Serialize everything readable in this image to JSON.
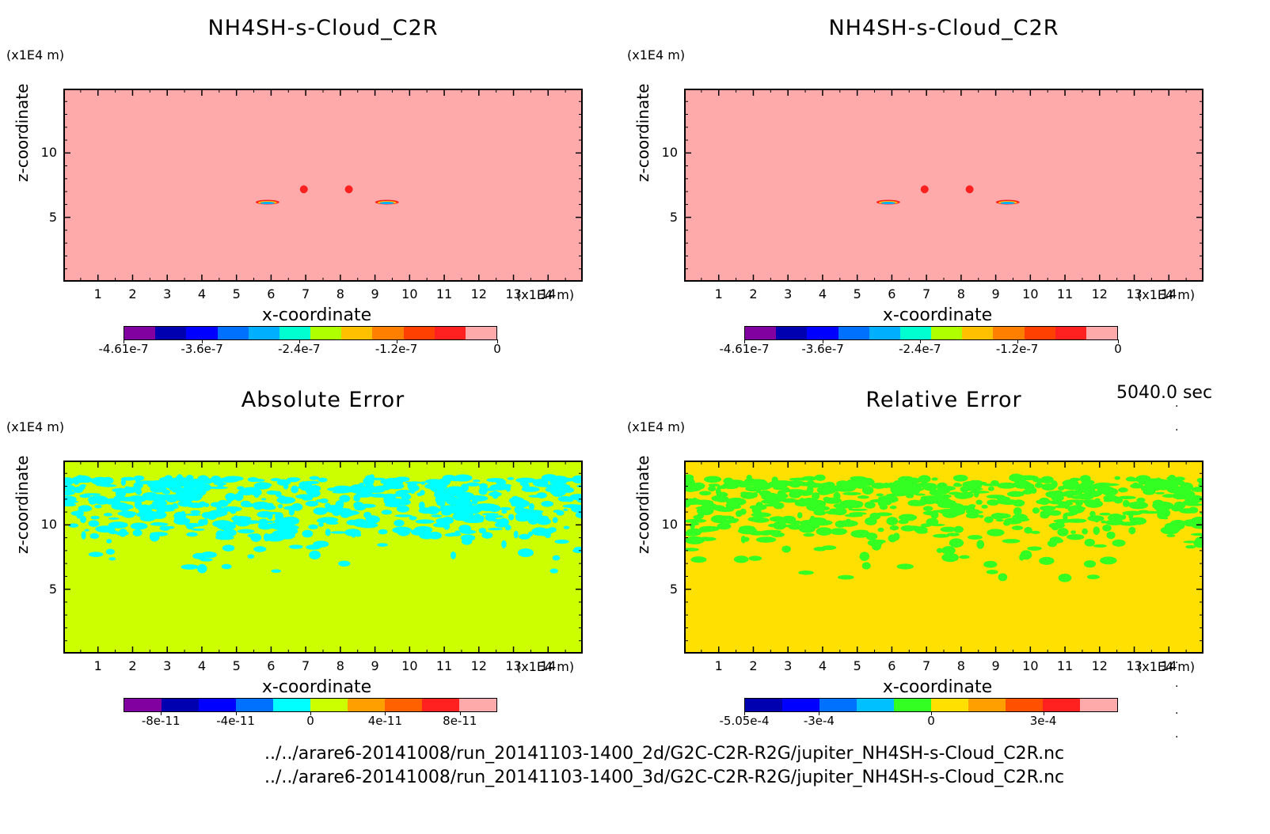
{
  "figure": {
    "time_label": "5040.0 sec",
    "paths": [
      "../../arare6-20141008/run_20141103-1400_2d/G2C-C2R-R2G/jupiter_NH4SH-s-Cloud_C2R.nc",
      "../../arare6-20141008/run_20141103-1400_3d/G2C-C2R-R2G/jupiter_NH4SH-s-Cloud_C2R.nc"
    ]
  },
  "chart_data": [
    {
      "type": "heatmap",
      "title": "NH4SH-s-Cloud_C2R",
      "xlabel": "x-coordinate",
      "ylabel": "z-coordinate",
      "x_unit": "(x1E4 m)",
      "y_unit": "(x1E4 m)",
      "xlim": [
        0,
        15
      ],
      "ylim": [
        0,
        15
      ],
      "x_ticks": [
        1,
        2,
        3,
        4,
        5,
        6,
        7,
        8,
        9,
        10,
        11,
        12,
        13,
        14
      ],
      "y_ticks": [
        5,
        10
      ],
      "background_color": "#ffaaaa",
      "colorbar": {
        "colors": [
          "#8000a0",
          "#0000b0",
          "#0000ff",
          "#0070ff",
          "#00b0ff",
          "#00ffd0",
          "#b0ff00",
          "#ffc000",
          "#ff8000",
          "#ff4000",
          "#ff2020",
          "#ffaaaa"
        ],
        "tick_labels": [
          "-4.61e-7",
          "-3.6e-7",
          "-2.4e-7",
          "-1.2e-7",
          "0"
        ],
        "tick_positions": [
          0,
          0.21,
          0.47,
          0.73,
          1.0
        ]
      },
      "features": [
        {
          "x": 5.85,
          "z": 6.3,
          "kind": "ring"
        },
        {
          "x": 6.9,
          "z": 7.3,
          "kind": "blob"
        },
        {
          "x": 8.2,
          "z": 7.3,
          "kind": "blob"
        },
        {
          "x": 9.3,
          "z": 6.3,
          "kind": "ring"
        }
      ]
    },
    {
      "type": "heatmap",
      "title": "NH4SH-s-Cloud_C2R",
      "xlabel": "x-coordinate",
      "ylabel": "z-coordinate",
      "x_unit": "(x1E4 m)",
      "y_unit": "(x1E4 m)",
      "xlim": [
        0,
        15
      ],
      "ylim": [
        0,
        15
      ],
      "x_ticks": [
        1,
        2,
        3,
        4,
        5,
        6,
        7,
        8,
        9,
        10,
        11,
        12,
        13,
        14
      ],
      "y_ticks": [
        5,
        10
      ],
      "background_color": "#ffaaaa",
      "colorbar": {
        "colors": [
          "#8000a0",
          "#0000b0",
          "#0000ff",
          "#0070ff",
          "#00b0ff",
          "#00ffd0",
          "#b0ff00",
          "#ffc000",
          "#ff8000",
          "#ff4000",
          "#ff2020",
          "#ffaaaa"
        ],
        "tick_labels": [
          "-4.61e-7",
          "-3.6e-7",
          "-2.4e-7",
          "-1.2e-7",
          "0"
        ],
        "tick_positions": [
          0,
          0.21,
          0.47,
          0.73,
          1.0
        ]
      },
      "features": [
        {
          "x": 5.85,
          "z": 6.3,
          "kind": "ring"
        },
        {
          "x": 6.9,
          "z": 7.3,
          "kind": "blob"
        },
        {
          "x": 8.2,
          "z": 7.3,
          "kind": "blob"
        },
        {
          "x": 9.3,
          "z": 6.3,
          "kind": "ring"
        }
      ]
    },
    {
      "type": "heatmap",
      "title": "Absolute Error",
      "xlabel": "x-coordinate",
      "ylabel": "z-coordinate",
      "x_unit": "(x1E4 m)",
      "y_unit": "(x1E4 m)",
      "xlim": [
        0,
        15
      ],
      "ylim": [
        0,
        15
      ],
      "x_ticks": [
        1,
        2,
        3,
        4,
        5,
        6,
        7,
        8,
        9,
        10,
        11,
        12,
        13,
        14
      ],
      "y_ticks": [
        5,
        10
      ],
      "background_color": "#ccff00",
      "patch_color": "#00ffff",
      "patch_zone": {
        "z_min": 6.5,
        "z_max": 13.8
      },
      "colorbar": {
        "colors": [
          "#8000a0",
          "#0000b0",
          "#0000ff",
          "#0070ff",
          "#00ffff",
          "#ccff00",
          "#ffa000",
          "#ff6000",
          "#ff2020",
          "#ffaaaa"
        ],
        "tick_labels": [
          "-8e-11",
          "-4e-11",
          "0",
          "4e-11",
          "8e-11"
        ],
        "tick_positions": [
          0.1,
          0.3,
          0.5,
          0.7,
          0.9
        ]
      }
    },
    {
      "type": "heatmap",
      "title": "Relative Error",
      "xlabel": "x-coordinate",
      "ylabel": "z-coordinate",
      "x_unit": "(x1E4 m)",
      "y_unit": "(x1E4 m)",
      "xlim": [
        0,
        15
      ],
      "ylim": [
        0,
        15
      ],
      "x_ticks": [
        1,
        2,
        3,
        4,
        5,
        6,
        7,
        8,
        9,
        10,
        11,
        12,
        13,
        14
      ],
      "y_ticks": [
        5,
        10
      ],
      "background_color": "#ffe000",
      "patch_color": "#33ff22",
      "patch_zone": {
        "z_min": 6.0,
        "z_max": 13.8
      },
      "colorbar": {
        "colors": [
          "#0000b0",
          "#0000ff",
          "#0070ff",
          "#00c0ff",
          "#33ff22",
          "#ffe000",
          "#ffa000",
          "#ff5000",
          "#ff2020",
          "#ffaaaa"
        ],
        "tick_labels": [
          "-5.05e-4",
          "-3e-4",
          "0",
          "3e-4"
        ],
        "tick_positions": [
          0.0,
          0.2,
          0.5,
          0.8
        ]
      }
    }
  ]
}
